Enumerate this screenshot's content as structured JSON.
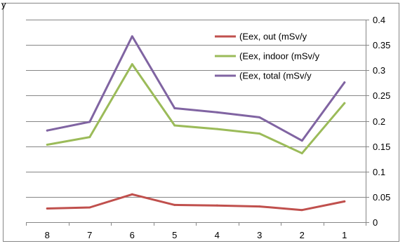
{
  "chart_data": {
    "type": "line",
    "stray_text": "y",
    "categories": [
      "8",
      "7",
      "6",
      "5",
      "4",
      "3",
      "2",
      "1"
    ],
    "y_tick_labels": [
      "0",
      "0.05",
      "0.1",
      "0.15",
      "0.2",
      "0.25",
      "0.3",
      "0.35",
      "0.4"
    ],
    "ylim": [
      0,
      0.4
    ],
    "y_axis_side": "right",
    "grid": "horizontal",
    "legend_placement": "top-right",
    "series": [
      {
        "name": "(Eex, out (mSv/y",
        "color": "#c0504d",
        "values": [
          0.027,
          0.029,
          0.055,
          0.034,
          0.033,
          0.031,
          0.024,
          0.041
        ]
      },
      {
        "name": "(Eex, indoor (mSv/y",
        "color": "#9bbb59",
        "values": [
          0.153,
          0.168,
          0.312,
          0.191,
          0.184,
          0.175,
          0.136,
          0.235
        ]
      },
      {
        "name": "(Eex, total (mSv/y",
        "color": "#8064a2",
        "values": [
          0.181,
          0.198,
          0.367,
          0.225,
          0.217,
          0.207,
          0.161,
          0.276
        ]
      }
    ]
  }
}
